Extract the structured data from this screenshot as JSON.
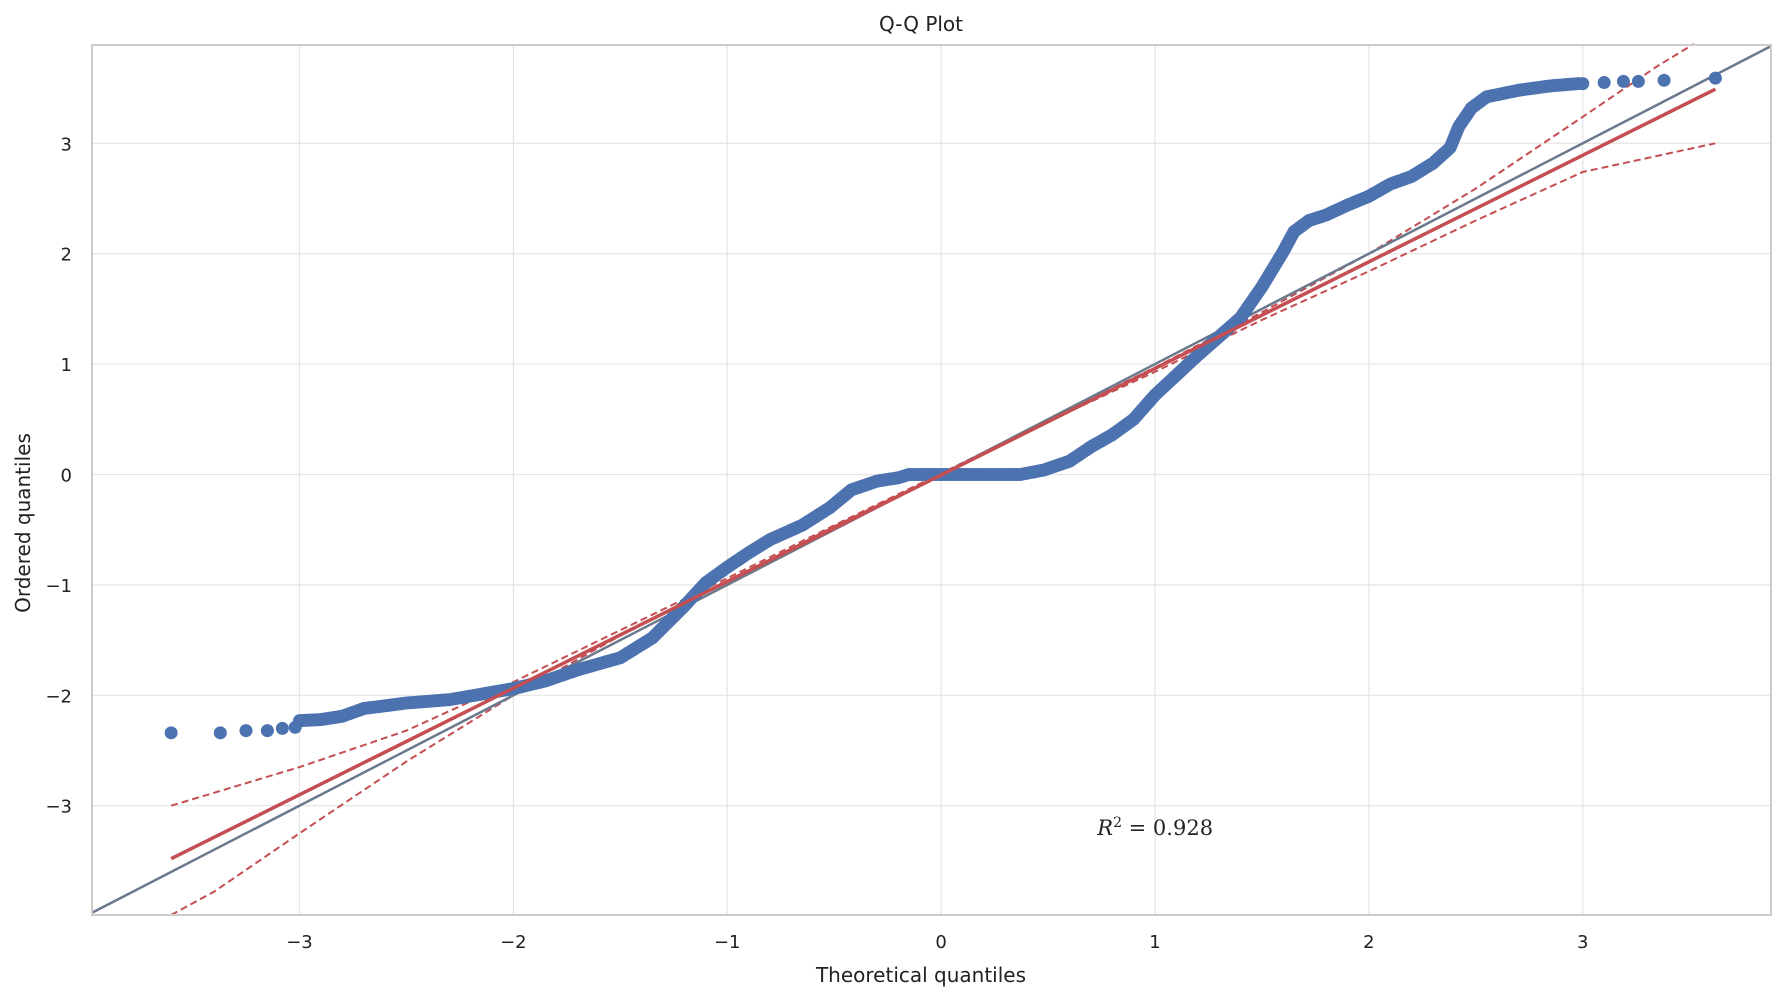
{
  "chart_data": {
    "type": "scatter",
    "title": "Q-Q Plot",
    "xlabel": "Theoretical quantiles",
    "ylabel": "Ordered quantiles",
    "xlim": [
      -3.97,
      3.88
    ],
    "ylim": [
      -3.99,
      3.89
    ],
    "xticks": [
      -3,
      -2,
      -1,
      0,
      1,
      2,
      3
    ],
    "yticks": [
      -3,
      -2,
      -1,
      0,
      1,
      2,
      3
    ],
    "xtick_labels": [
      "−3",
      "−2",
      "−1",
      "0",
      "1",
      "2",
      "3"
    ],
    "ytick_labels": [
      "−3",
      "−2",
      "−1",
      "0",
      "1",
      "2",
      "3"
    ],
    "grid": true,
    "annotation": {
      "text_r": "R",
      "text_exp": "2",
      "text_rest": " = 0.928",
      "x": 0.73,
      "y": -3.2
    },
    "colors": {
      "points": "#4c72b0",
      "fit": "#c44e52",
      "identity": "#6a7a8c",
      "grid": "#e5e5e5",
      "spine": "#cccccc"
    },
    "identity_line": {
      "slope": 1,
      "intercept": 0
    },
    "fit_line": {
      "x": [
        -3.6,
        3.62
      ],
      "y": [
        -3.48,
        3.49
      ]
    },
    "confidence_band": {
      "upper": [
        [
          -3.6,
          -3.0
        ],
        [
          -3.0,
          -2.65
        ],
        [
          -2.5,
          -2.32
        ],
        [
          -2.0,
          -1.88
        ],
        [
          -1.5,
          -1.41
        ],
        [
          -1.0,
          -0.94
        ],
        [
          -0.5,
          -0.46
        ],
        [
          0.0,
          0.01
        ],
        [
          0.5,
          0.49
        ],
        [
          1.0,
          0.97
        ],
        [
          1.5,
          1.47
        ],
        [
          2.0,
          2.0
        ],
        [
          2.5,
          2.59
        ],
        [
          3.0,
          3.24
        ],
        [
          3.35,
          3.7
        ],
        [
          3.52,
          3.9
        ]
      ],
      "lower": [
        [
          -3.6,
          -3.99
        ],
        [
          -3.4,
          -3.78
        ],
        [
          -3.0,
          -3.25
        ],
        [
          -2.5,
          -2.6
        ],
        [
          -2.0,
          -2.0
        ],
        [
          -1.5,
          -1.46
        ],
        [
          -1.0,
          -0.97
        ],
        [
          -0.5,
          -0.47
        ],
        [
          0.0,
          0.0
        ],
        [
          0.5,
          0.48
        ],
        [
          1.0,
          0.93
        ],
        [
          1.5,
          1.4
        ],
        [
          2.0,
          1.84
        ],
        [
          2.5,
          2.3
        ],
        [
          3.0,
          2.74
        ],
        [
          3.62,
          3.0
        ]
      ]
    },
    "series": [
      {
        "name": "",
        "type": "scatter",
        "isolated_points": [
          [
            -3.6,
            -2.34
          ],
          [
            -3.37,
            -2.34
          ],
          [
            -3.25,
            -2.32
          ],
          [
            -3.15,
            -2.32
          ],
          [
            -3.08,
            -2.3
          ],
          [
            -3.02,
            -2.29
          ],
          [
            3.0,
            3.54
          ],
          [
            3.1,
            3.55
          ],
          [
            3.19,
            3.56
          ],
          [
            3.26,
            3.56
          ],
          [
            3.38,
            3.57
          ],
          [
            3.62,
            3.59
          ]
        ],
        "dense_curve": [
          [
            -3.0,
            -2.23
          ],
          [
            -2.9,
            -2.22
          ],
          [
            -2.8,
            -2.19
          ],
          [
            -2.7,
            -2.12
          ],
          [
            -2.5,
            -2.07
          ],
          [
            -2.3,
            -2.04
          ],
          [
            -2.15,
            -1.99
          ],
          [
            -2.0,
            -1.94
          ],
          [
            -1.85,
            -1.87
          ],
          [
            -1.7,
            -1.77
          ],
          [
            -1.5,
            -1.66
          ],
          [
            -1.35,
            -1.48
          ],
          [
            -1.2,
            -1.19
          ],
          [
            -1.1,
            -0.98
          ],
          [
            -1.0,
            -0.84
          ],
          [
            -0.9,
            -0.71
          ],
          [
            -0.8,
            -0.59
          ],
          [
            -0.65,
            -0.46
          ],
          [
            -0.52,
            -0.3
          ],
          [
            -0.42,
            -0.14
          ],
          [
            -0.3,
            -0.06
          ],
          [
            -0.2,
            -0.03
          ],
          [
            -0.15,
            0.0
          ],
          [
            0.0,
            0.0
          ],
          [
            0.15,
            0.0
          ],
          [
            0.37,
            0.0
          ],
          [
            0.48,
            0.04
          ],
          [
            0.6,
            0.12
          ],
          [
            0.7,
            0.25
          ],
          [
            0.8,
            0.36
          ],
          [
            0.9,
            0.5
          ],
          [
            1.0,
            0.72
          ],
          [
            1.1,
            0.9
          ],
          [
            1.2,
            1.08
          ],
          [
            1.3,
            1.25
          ],
          [
            1.4,
            1.42
          ],
          [
            1.5,
            1.7
          ],
          [
            1.6,
            2.02
          ],
          [
            1.65,
            2.2
          ],
          [
            1.72,
            2.3
          ],
          [
            1.8,
            2.35
          ],
          [
            1.9,
            2.44
          ],
          [
            2.0,
            2.52
          ],
          [
            2.1,
            2.63
          ],
          [
            2.2,
            2.7
          ],
          [
            2.3,
            2.82
          ],
          [
            2.38,
            2.96
          ],
          [
            2.42,
            3.15
          ],
          [
            2.48,
            3.32
          ],
          [
            2.55,
            3.42
          ],
          [
            2.7,
            3.48
          ],
          [
            2.85,
            3.52
          ],
          [
            2.98,
            3.54
          ]
        ]
      }
    ]
  }
}
